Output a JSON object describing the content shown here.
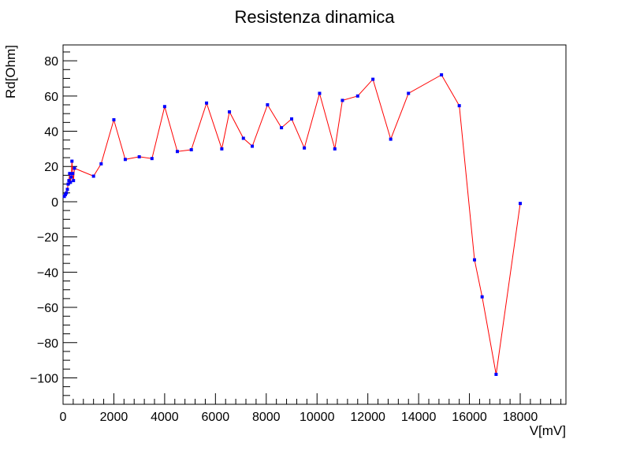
{
  "chart_data": {
    "type": "line",
    "title": "Resistenza dinamica",
    "xlabel": "V[mV]",
    "ylabel": "Rd[Ohm]",
    "xlim": [
      0,
      19800
    ],
    "ylim": [
      -115,
      89
    ],
    "grid": false,
    "legend": "none",
    "x_ticks": [
      0,
      2000,
      4000,
      6000,
      8000,
      10000,
      12000,
      14000,
      16000,
      18000
    ],
    "x_tick_labels": [
      "0",
      "2000",
      "4000",
      "6000",
      "8000",
      "10000",
      "12000",
      "14000",
      "16000",
      "18000"
    ],
    "y_ticks": [
      -100,
      -80,
      -60,
      -40,
      -20,
      0,
      20,
      40,
      60,
      80
    ],
    "y_tick_labels": [
      "−100",
      "−80",
      "−60",
      "−40",
      "−20",
      "0",
      "20",
      "40",
      "60",
      "80"
    ],
    "line_color": "#ff0000",
    "marker_color": "#0000ff",
    "series": [
      {
        "x": [
          50,
          90,
          130,
          170,
          200,
          230,
          260,
          290,
          320,
          350,
          380,
          410,
          450,
          1200,
          1500,
          2000,
          2450,
          3000,
          3500,
          4000,
          4500,
          5050,
          5650,
          6250,
          6550,
          7100,
          7450,
          8050,
          8600,
          9000,
          9500,
          10100,
          10700,
          11000,
          11600,
          12200,
          12900,
          13600,
          14900,
          15600,
          16200,
          16500,
          17050,
          18000
        ],
        "y": [
          3,
          4,
          5,
          7,
          10,
          12,
          16,
          11,
          14,
          23,
          16,
          12,
          19,
          14.5,
          21.5,
          46.5,
          24,
          25.5,
          24.5,
          54,
          28.5,
          29.5,
          56,
          30,
          51,
          36,
          31.5,
          55,
          42,
          47,
          30.5,
          61.5,
          30,
          57.5,
          60,
          69.5,
          35.5,
          61.5,
          72,
          54.5,
          -33,
          -54,
          -98,
          -1
        ]
      }
    ]
  }
}
